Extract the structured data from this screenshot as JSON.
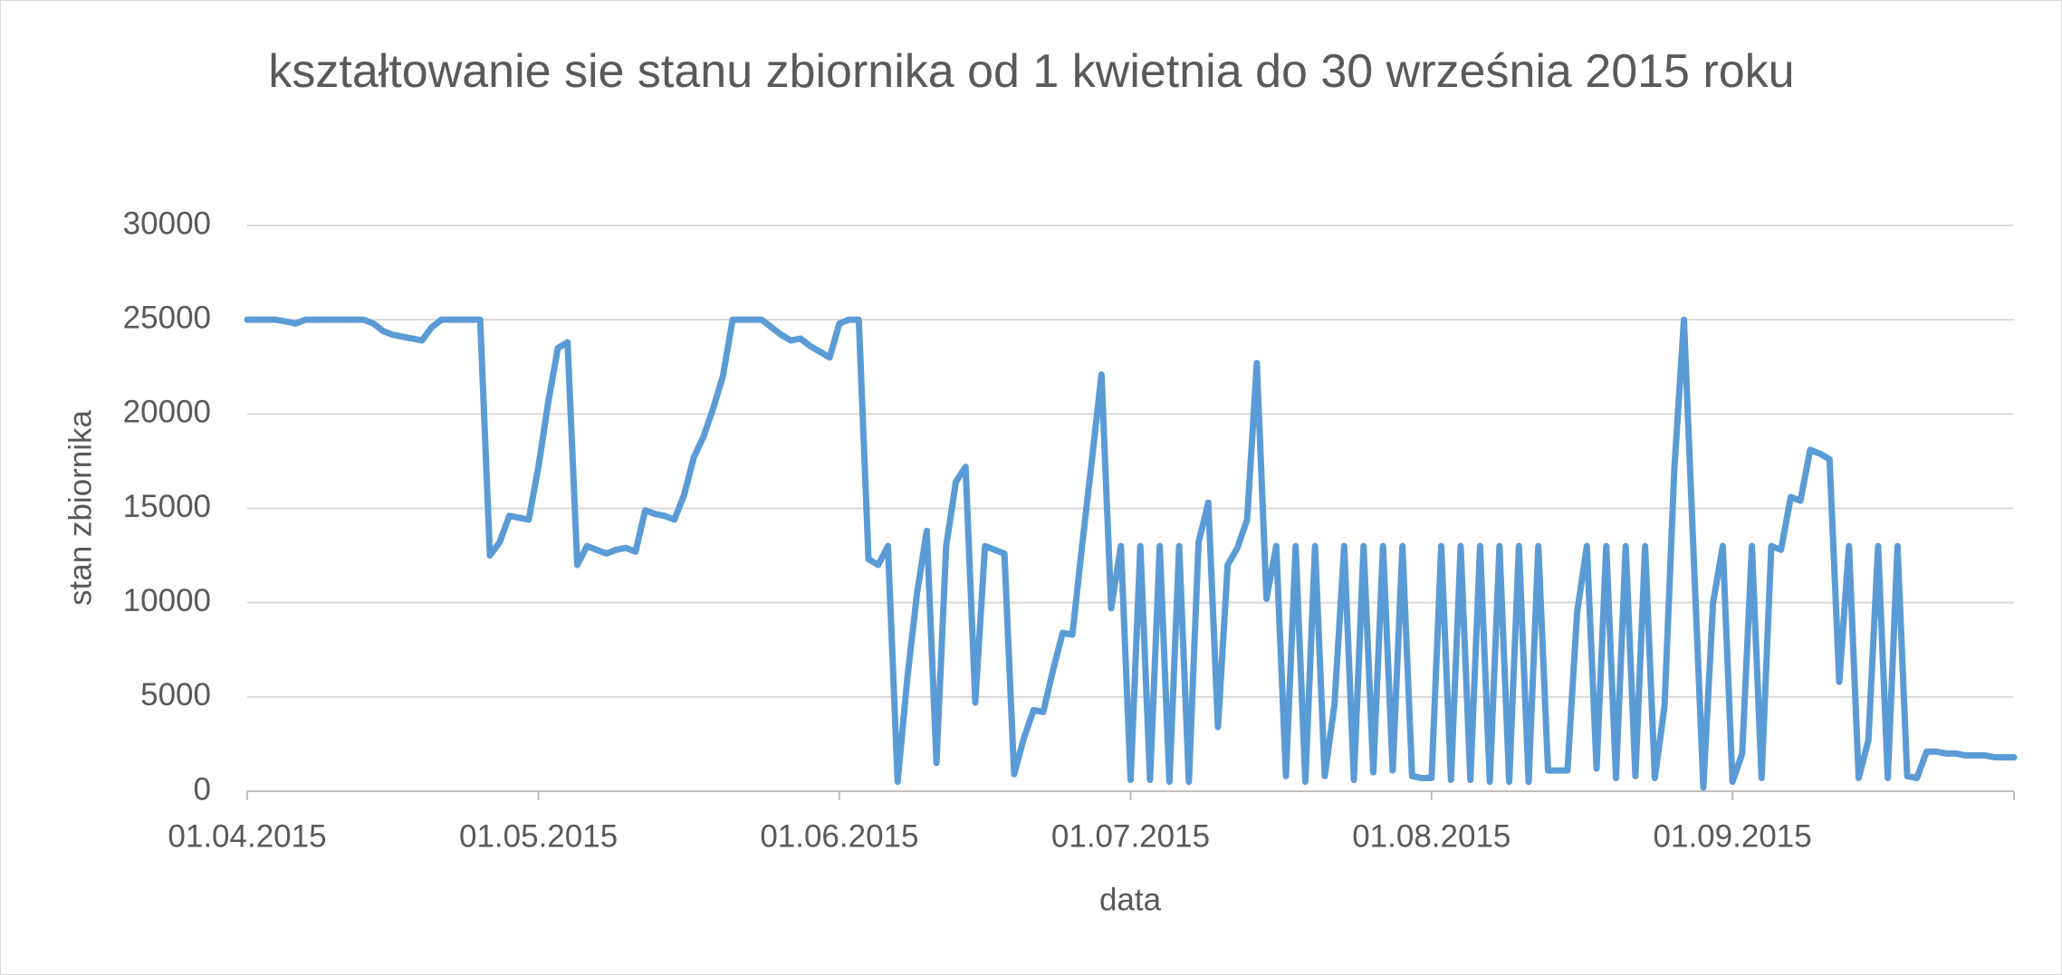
{
  "chart_data": {
    "type": "line",
    "title": "kształtowanie sie stanu zbiornika od 1 kwietnia do 30 września 2015 roku",
    "x_label": "data",
    "y_label": "stan zbiornika",
    "x": [
      "01.04.2015",
      "02.04.2015",
      "03.04.2015",
      "04.04.2015",
      "05.04.2015",
      "06.04.2015",
      "07.04.2015",
      "08.04.2015",
      "09.04.2015",
      "10.04.2015",
      "11.04.2015",
      "12.04.2015",
      "13.04.2015",
      "14.04.2015",
      "15.04.2015",
      "16.04.2015",
      "17.04.2015",
      "18.04.2015",
      "19.04.2015",
      "20.04.2015",
      "21.04.2015",
      "22.04.2015",
      "23.04.2015",
      "24.04.2015",
      "25.04.2015",
      "26.04.2015",
      "27.04.2015",
      "28.04.2015",
      "29.04.2015",
      "30.04.2015",
      "01.05.2015",
      "02.05.2015",
      "03.05.2015",
      "04.05.2015",
      "05.05.2015",
      "06.05.2015",
      "07.05.2015",
      "08.05.2015",
      "09.05.2015",
      "10.05.2015",
      "11.05.2015",
      "12.05.2015",
      "13.05.2015",
      "14.05.2015",
      "15.05.2015",
      "16.05.2015",
      "17.05.2015",
      "18.05.2015",
      "19.05.2015",
      "20.05.2015",
      "21.05.2015",
      "22.05.2015",
      "23.05.2015",
      "24.05.2015",
      "25.05.2015",
      "26.05.2015",
      "27.05.2015",
      "28.05.2015",
      "29.05.2015",
      "30.05.2015",
      "31.05.2015",
      "01.06.2015",
      "02.06.2015",
      "03.06.2015",
      "04.06.2015",
      "05.06.2015",
      "06.06.2015",
      "07.06.2015",
      "08.06.2015",
      "09.06.2015",
      "10.06.2015",
      "11.06.2015",
      "12.06.2015",
      "13.06.2015",
      "14.06.2015",
      "15.06.2015",
      "16.06.2015",
      "17.06.2015",
      "18.06.2015",
      "19.06.2015",
      "20.06.2015",
      "21.06.2015",
      "22.06.2015",
      "23.06.2015",
      "24.06.2015",
      "25.06.2015",
      "26.06.2015",
      "27.06.2015",
      "28.06.2015",
      "29.06.2015",
      "30.06.2015",
      "01.07.2015",
      "02.07.2015",
      "03.07.2015",
      "04.07.2015",
      "05.07.2015",
      "06.07.2015",
      "07.07.2015",
      "08.07.2015",
      "09.07.2015",
      "10.07.2015",
      "11.07.2015",
      "12.07.2015",
      "13.07.2015",
      "14.07.2015",
      "15.07.2015",
      "16.07.2015",
      "17.07.2015",
      "18.07.2015",
      "19.07.2015",
      "20.07.2015",
      "21.07.2015",
      "22.07.2015",
      "23.07.2015",
      "24.07.2015",
      "25.07.2015",
      "26.07.2015",
      "27.07.2015",
      "28.07.2015",
      "29.07.2015",
      "30.07.2015",
      "31.07.2015",
      "01.08.2015",
      "02.08.2015",
      "03.08.2015",
      "04.08.2015",
      "05.08.2015",
      "06.08.2015",
      "07.08.2015",
      "08.08.2015",
      "09.08.2015",
      "10.08.2015",
      "11.08.2015",
      "12.08.2015",
      "13.08.2015",
      "14.08.2015",
      "15.08.2015",
      "16.08.2015",
      "17.08.2015",
      "18.08.2015",
      "19.08.2015",
      "20.08.2015",
      "21.08.2015",
      "22.08.2015",
      "23.08.2015",
      "24.08.2015",
      "25.08.2015",
      "26.08.2015",
      "27.08.2015",
      "28.08.2015",
      "29.08.2015",
      "30.08.2015",
      "31.08.2015",
      "01.09.2015",
      "02.09.2015",
      "03.09.2015",
      "04.09.2015",
      "05.09.2015",
      "06.09.2015",
      "07.09.2015",
      "08.09.2015",
      "09.09.2015",
      "10.09.2015",
      "11.09.2015",
      "12.09.2015",
      "13.09.2015",
      "14.09.2015",
      "15.09.2015",
      "16.09.2015",
      "17.09.2015",
      "18.09.2015",
      "19.09.2015",
      "20.09.2015",
      "21.09.2015",
      "22.09.2015",
      "23.09.2015",
      "24.09.2015",
      "25.09.2015",
      "26.09.2015",
      "27.09.2015",
      "28.09.2015",
      "29.09.2015",
      "30.09.2015"
    ],
    "series": [
      {
        "color": "#5b9bd5",
        "values": [
          25000,
          25000,
          25000,
          25000,
          24900,
          24800,
          25000,
          25000,
          25000,
          25000,
          25000,
          25000,
          25000,
          24800,
          24400,
          24200,
          24100,
          24000,
          23900,
          24600,
          25000,
          25000,
          25000,
          25000,
          25000,
          12500,
          13200,
          14600,
          14500,
          14400,
          17200,
          20600,
          23500,
          23800,
          12000,
          13000,
          12800,
          12600,
          12800,
          12900,
          12700,
          14900,
          14700,
          14600,
          14400,
          15700,
          17700,
          18800,
          20300,
          22000,
          25000,
          25000,
          25000,
          25000,
          24600,
          24200,
          23900,
          24000,
          23600,
          23300,
          23000,
          24800,
          25000,
          25000,
          12300,
          12000,
          13000,
          500,
          6000,
          10500,
          13800,
          1500,
          13000,
          16400,
          17200,
          4700,
          13000,
          12800,
          12600,
          900,
          2800,
          4300,
          4200,
          6400,
          8400,
          8300,
          13000,
          17500,
          22100,
          9700,
          13000,
          600,
          13000,
          600,
          13000,
          500,
          13000,
          500,
          13200,
          15300,
          3400,
          12000,
          12900,
          14400,
          22700,
          10200,
          13000,
          800,
          13000,
          500,
          13000,
          800,
          4600,
          13000,
          600,
          13000,
          1000,
          13000,
          1100,
          13000,
          800,
          700,
          700,
          13000,
          600,
          13000,
          600,
          13000,
          500,
          13000,
          500,
          13000,
          500,
          13000,
          1100,
          1100,
          1100,
          9500,
          13000,
          1200,
          13000,
          700,
          13000,
          800,
          13000,
          700,
          4500,
          17000,
          25000,
          12500,
          200,
          10000,
          13000,
          500,
          2000,
          13000,
          700,
          13000,
          12800,
          15600,
          15400,
          18100,
          17900,
          17600,
          5800,
          13000,
          700,
          2700,
          13000,
          700,
          13000,
          800,
          700,
          2100,
          2100,
          2000,
          2000,
          1900,
          1900,
          1900,
          1800,
          1800,
          1800
        ]
      }
    ],
    "xlim": [
      "01.04.2015",
      "30.09.2015"
    ],
    "xticks": [
      "01.04.2015",
      "01.05.2015",
      "01.06.2015",
      "01.07.2015",
      "01.08.2015",
      "01.09.2015"
    ],
    "ylim": [
      0,
      30000
    ],
    "yticks": [
      0,
      5000,
      10000,
      15000,
      20000,
      25000,
      30000
    ],
    "grid": true
  }
}
